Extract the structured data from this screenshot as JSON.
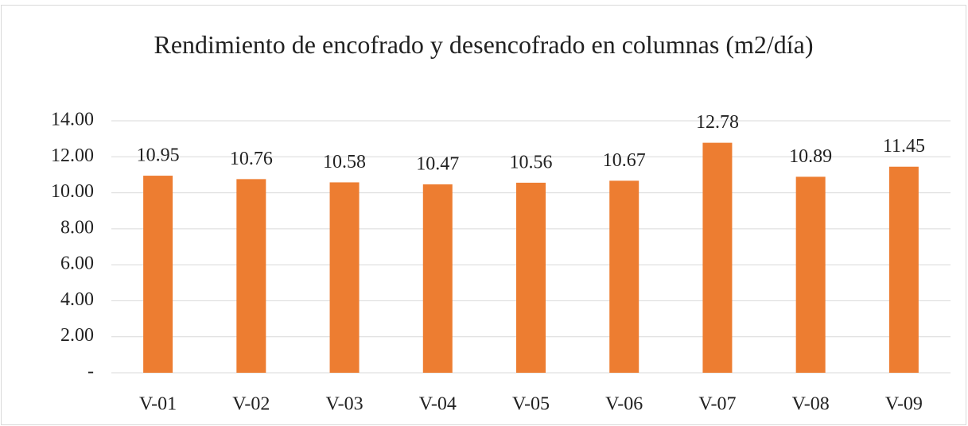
{
  "chart_data": {
    "type": "bar",
    "title": "Rendimiento de encofrado y desencofrado en columnas (m2/día)",
    "categories": [
      "V-01",
      "V-02",
      "V-03",
      "V-04",
      "V-05",
      "V-06",
      "V-07",
      "V-08",
      "V-09"
    ],
    "values": [
      10.95,
      10.76,
      10.58,
      10.47,
      10.56,
      10.67,
      12.78,
      10.89,
      11.45
    ],
    "color": "#ed7d31",
    "ylim": [
      0,
      14
    ],
    "yticks": [
      {
        "value": 0,
        "label": "-"
      },
      {
        "value": 2,
        "label": "2.00"
      },
      {
        "value": 4,
        "label": "4.00"
      },
      {
        "value": 6,
        "label": "6.00"
      },
      {
        "value": 8,
        "label": "8.00"
      },
      {
        "value": 10,
        "label": "10.00"
      },
      {
        "value": 12,
        "label": "12.00"
      },
      {
        "value": 14,
        "label": "14.00"
      }
    ],
    "grid": true
  }
}
